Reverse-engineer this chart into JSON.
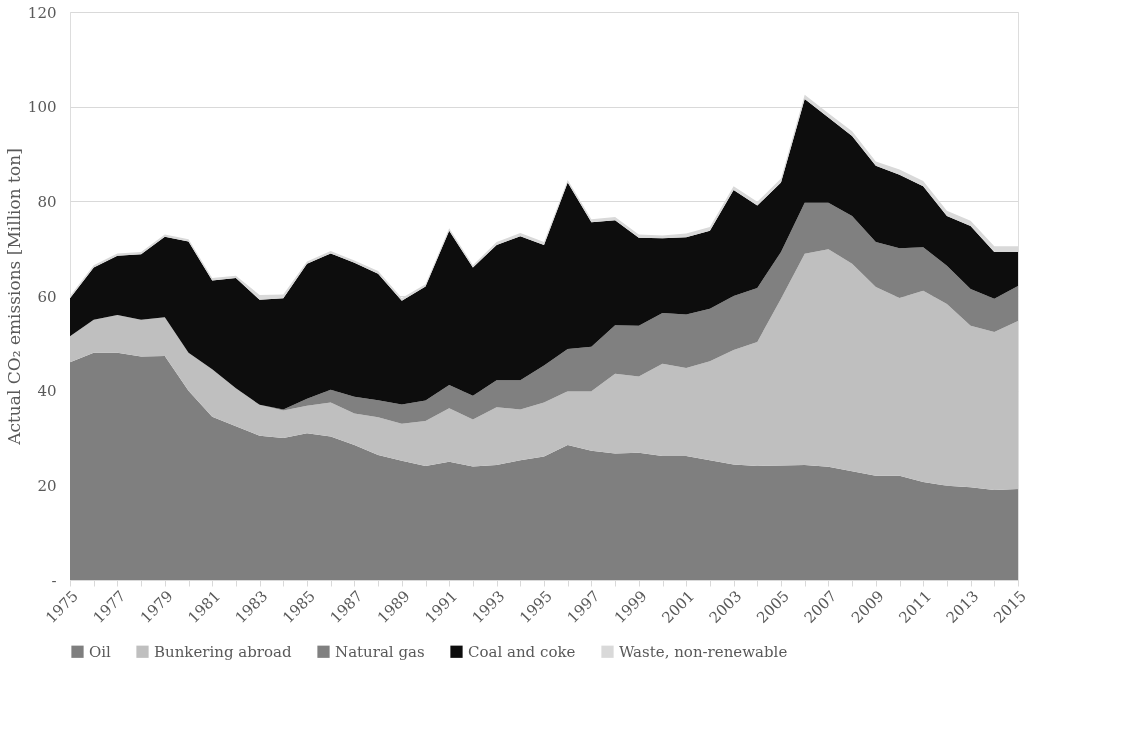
{
  "chart_data": {
    "type": "area",
    "stacked": true,
    "ylabel": "Actual CO₂ emissions [Million ton]",
    "categories": [
      "1975",
      null,
      "1977",
      null,
      "1979",
      null,
      "1981",
      null,
      "1983",
      null,
      "1985",
      null,
      "1987",
      null,
      "1989",
      null,
      "1991",
      null,
      "1993",
      null,
      "1995",
      null,
      "1997",
      null,
      "1999",
      null,
      "2001",
      null,
      "2003",
      null,
      "2005",
      null,
      "2007",
      null,
      "2009",
      null,
      "2011",
      null,
      "2013",
      null,
      "2015"
    ],
    "ylim": [
      0,
      120
    ],
    "yticks": [
      {
        "value": 0,
        "label": "-"
      },
      20,
      40,
      60,
      80,
      100,
      120
    ],
    "grid": "y",
    "legend": "bottom",
    "series": [
      {
        "name": "Oil",
        "color": "#7f7f7f",
        "values": [
          46,
          48,
          48,
          47.2,
          47.3,
          40,
          34.5,
          32.5,
          30.5,
          30,
          31,
          30.3,
          28.5,
          26.4,
          25.2,
          24.1,
          25,
          24,
          24.3,
          25.3,
          26.1,
          28.5,
          27.3,
          26.7,
          26.9,
          26.2,
          26.2,
          25.3,
          24.4,
          24.1,
          24.2,
          24.3,
          23.9,
          23,
          22,
          22,
          20.7,
          19.9,
          19.6,
          19,
          19.2
        ]
      },
      {
        "name": "Bunkering abroad",
        "color": "#bfbfbf",
        "values": [
          5.5,
          7,
          8,
          7.8,
          8.2,
          8,
          10,
          8,
          6.5,
          5.8,
          5.8,
          7.2,
          6.7,
          8,
          7.8,
          9.5,
          11.3,
          9.9,
          12.2,
          10.7,
          11.4,
          11.4,
          12.6,
          16.9,
          16.1,
          19.5,
          18.6,
          20.9,
          24.2,
          26.2,
          35.2,
          44.6,
          46,
          43.8,
          39.9,
          37.6,
          40.4,
          38.4,
          34.1,
          33.4,
          35.5
        ]
      },
      {
        "name": "Natural gas",
        "color": "#808080",
        "values": [
          0,
          0,
          0,
          0,
          0,
          0,
          0,
          0,
          0,
          0.2,
          1.5,
          2.7,
          3.5,
          3.6,
          4.1,
          4.3,
          4.9,
          5,
          5.7,
          6.2,
          7.8,
          8.9,
          9.4,
          10.2,
          10.7,
          10.7,
          11.3,
          11.1,
          11.4,
          11.4,
          9.9,
          10.8,
          9.8,
          10.1,
          9.5,
          10.5,
          9.2,
          8.1,
          7.8,
          7,
          7.4
        ]
      },
      {
        "name": "Coal and coke",
        "color": "#0d0d0d",
        "values": [
          8,
          11,
          12.5,
          13.8,
          17,
          23.5,
          18.8,
          23.3,
          22.2,
          23.5,
          28.5,
          28.8,
          28.3,
          26.7,
          21.9,
          24.1,
          32.6,
          27.1,
          28.6,
          30.4,
          25.5,
          35.2,
          26.3,
          22.2,
          18.6,
          15.8,
          16.3,
          16.5,
          22.4,
          17.4,
          14.7,
          21.9,
          18,
          16.9,
          16.1,
          15.5,
          12.9,
          10.5,
          13.3,
          9.9,
          7.2
        ]
      },
      {
        "name": "Waste, non-renewable",
        "color": "#d9d9d9",
        "values": [
          0.5,
          0.5,
          0.5,
          0.5,
          0.5,
          0.5,
          0.5,
          0.5,
          1,
          0.8,
          0.5,
          0.5,
          0.5,
          0.6,
          0.6,
          0.5,
          0.5,
          0.5,
          0.6,
          0.7,
          0.6,
          0.5,
          0.6,
          0.7,
          0.7,
          0.6,
          0.8,
          0.8,
          0.8,
          0.8,
          0.8,
          0.9,
          0.9,
          1,
          0.9,
          1.1,
          1.1,
          1.1,
          1.1,
          1.2,
          1.2
        ]
      }
    ]
  }
}
